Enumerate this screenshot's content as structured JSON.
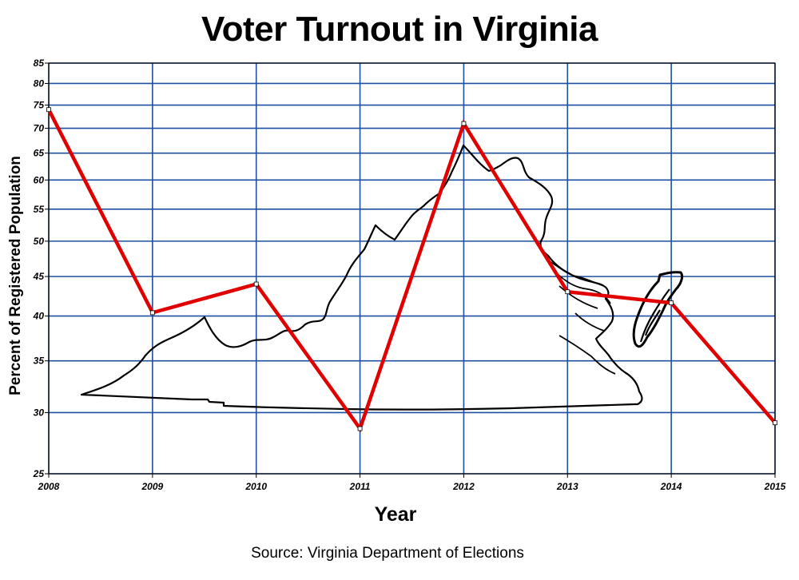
{
  "chart_data": {
    "type": "line",
    "title": "Voter Turnout in Virginia",
    "xlabel": "Year",
    "ylabel": "Percent of Registered Population",
    "source": "Source: Virginia Department of Elections",
    "x": [
      2008,
      2009,
      2010,
      2011,
      2012,
      2013,
      2014,
      2015
    ],
    "x_tick_labels": [
      "2008",
      "2009",
      "2010",
      "2011",
      "2012",
      "2013",
      "2014",
      "2015"
    ],
    "y_tick_labels": [
      "25",
      "30",
      "35",
      "40",
      "45",
      "50",
      "55",
      "60",
      "65",
      "70",
      "75",
      "80",
      "85"
    ],
    "y_ticks": [
      25,
      30,
      35,
      40,
      45,
      50,
      55,
      60,
      65,
      70,
      75,
      80,
      85
    ],
    "ylim": [
      25,
      85
    ],
    "y_scale": "log",
    "grid": true,
    "series": [
      {
        "values": [
          74.0,
          40.4,
          44.0,
          28.6,
          71.0,
          43.0,
          41.6,
          29.1
        ],
        "color": "#e00000"
      }
    ],
    "background_image": "virginia-state-outline"
  },
  "colors": {
    "grid": "#1f4fa0",
    "line": "#e00000"
  }
}
